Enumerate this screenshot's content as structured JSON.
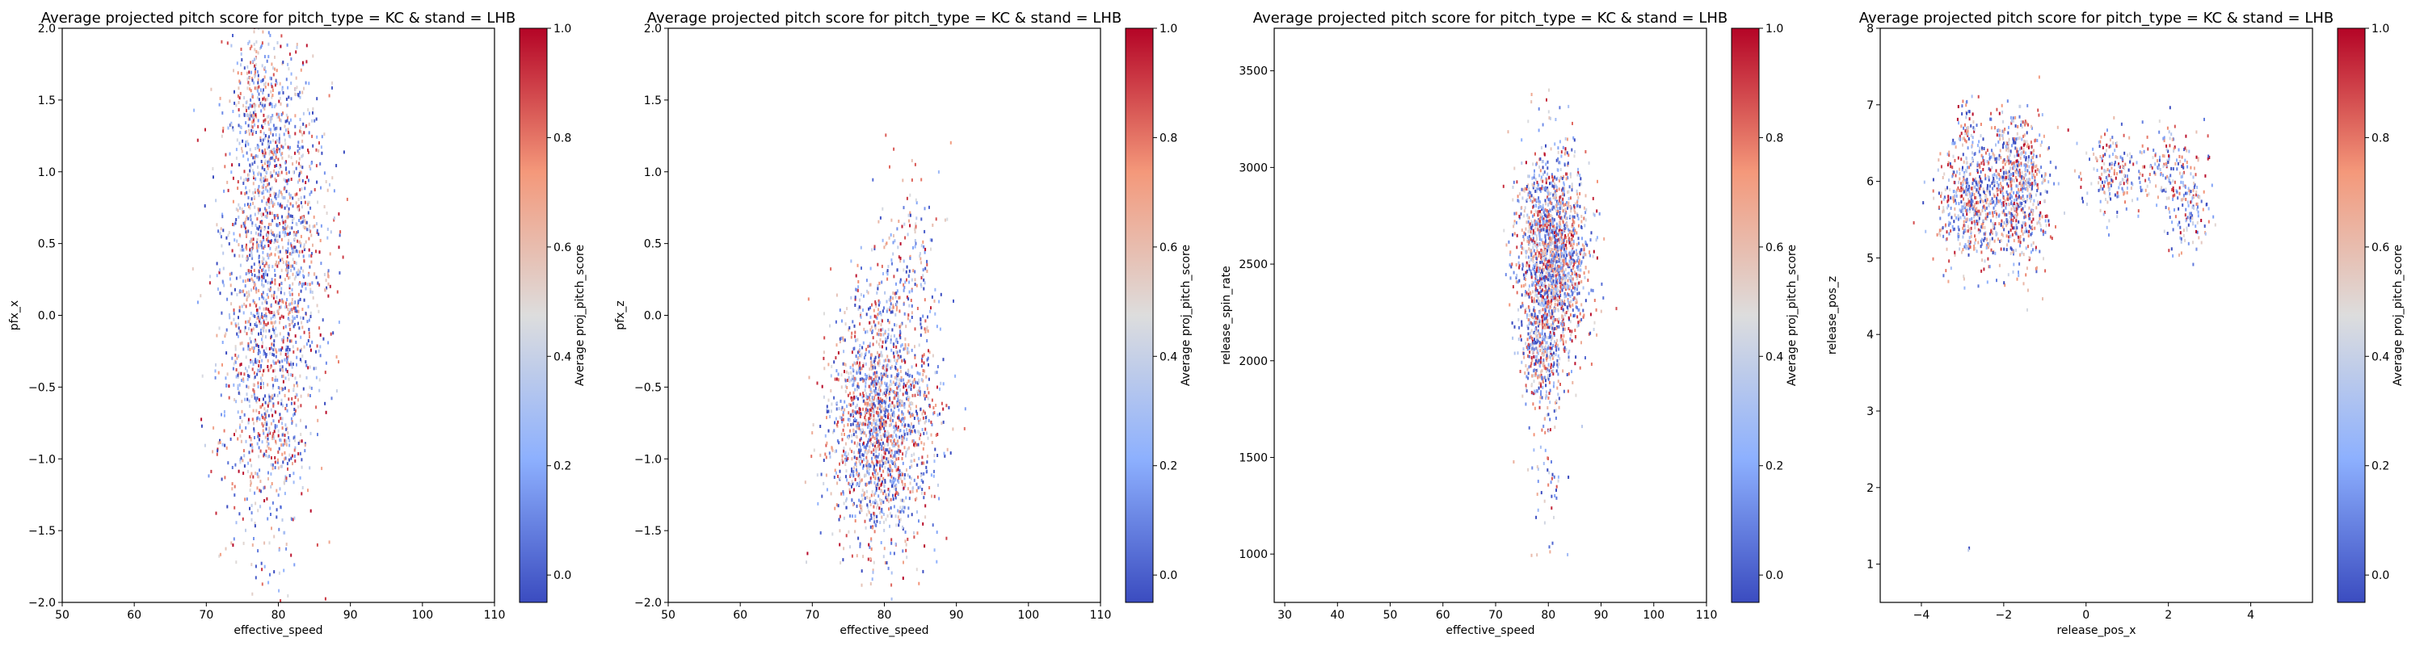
{
  "chart_data": [
    {
      "type": "heatmap",
      "title": "Average projected pitch score for pitch_type = KC & stand = LHB",
      "xlabel": "effective_speed",
      "ylabel": "pfx_x",
      "xlim": [
        50,
        110
      ],
      "ylim": [
        -2.0,
        2.0
      ],
      "xticks": [
        50,
        60,
        70,
        80,
        90,
        100,
        110
      ],
      "yticks": [
        -2.0,
        -1.5,
        -1.0,
        -0.5,
        0.0,
        0.5,
        1.0,
        1.5,
        2.0
      ],
      "xtick_labels": [
        "50",
        "60",
        "70",
        "80",
        "90",
        "100",
        "110"
      ],
      "ytick_labels": [
        "−2.0",
        "−1.5",
        "−1.0",
        "−0.5",
        "0.0",
        "0.5",
        "1.0",
        "1.5",
        "2.0"
      ],
      "colorbar": {
        "label": "Average proj_pitch_score",
        "range": [
          -0.05,
          1.0
        ],
        "ticks": [
          0.0,
          0.2,
          0.4,
          0.6,
          0.8,
          1.0
        ],
        "tick_labels": [
          "0.0",
          "0.2",
          "0.4",
          "0.6",
          "0.8",
          "1.0"
        ],
        "colormap": "coolwarm"
      },
      "clusters": [
        {
          "cx": 79.5,
          "cy": 0.6,
          "sx": 3.6,
          "sy": 0.6,
          "n": 1300
        },
        {
          "cx": 78.0,
          "cy": -0.6,
          "sx": 3.3,
          "sy": 0.55,
          "n": 700
        },
        {
          "cx": 77.0,
          "cy": 1.55,
          "sx": 1.8,
          "sy": 0.25,
          "n": 200
        }
      ]
    },
    {
      "type": "heatmap",
      "title": "Average projected pitch score for pitch_type = KC & stand = LHB",
      "xlabel": "effective_speed",
      "ylabel": "pfx_z",
      "xlim": [
        50,
        110
      ],
      "ylim": [
        -2.0,
        2.0
      ],
      "xticks": [
        50,
        60,
        70,
        80,
        90,
        100,
        110
      ],
      "yticks": [
        -2.0,
        -1.5,
        -1.0,
        -0.5,
        0.0,
        0.5,
        1.0,
        1.5,
        2.0
      ],
      "xtick_labels": [
        "50",
        "60",
        "70",
        "80",
        "90",
        "100",
        "110"
      ],
      "ytick_labels": [
        "−2.0",
        "−1.5",
        "−1.0",
        "−0.5",
        "0.0",
        "0.5",
        "1.0",
        "1.5",
        "2.0"
      ],
      "colorbar": {
        "label": "Average proj_pitch_score",
        "range": [
          -0.05,
          1.0
        ],
        "ticks": [
          0.0,
          0.2,
          0.4,
          0.6,
          0.8,
          1.0
        ],
        "tick_labels": [
          "0.0",
          "0.2",
          "0.4",
          "0.6",
          "0.8",
          "1.0"
        ],
        "colormap": "coolwarm"
      },
      "clusters": [
        {
          "cx": 79.5,
          "cy": -0.75,
          "sx": 3.6,
          "sy": 0.45,
          "n": 1800
        },
        {
          "cx": 83.0,
          "cy": 0.35,
          "sx": 2.5,
          "sy": 0.35,
          "n": 180
        }
      ]
    },
    {
      "type": "heatmap",
      "title": "Average projected pitch score for pitch_type = KC & stand = LHB",
      "xlabel": "effective_speed",
      "ylabel": "release_spin_rate",
      "xlim": [
        28,
        110
      ],
      "ylim": [
        750,
        3720
      ],
      "xticks": [
        30,
        40,
        50,
        60,
        70,
        80,
        90,
        100,
        110
      ],
      "yticks": [
        1000,
        1500,
        2000,
        2500,
        3000,
        3500
      ],
      "xtick_labels": [
        "30",
        "40",
        "50",
        "60",
        "70",
        "80",
        "90",
        "100",
        "110"
      ],
      "ytick_labels": [
        "1000",
        "1500",
        "2000",
        "2500",
        "3000",
        "3500"
      ],
      "colorbar": {
        "label": "Average proj_pitch_score",
        "range": [
          -0.05,
          1.0
        ],
        "ticks": [
          0.0,
          0.2,
          0.4,
          0.6,
          0.8,
          1.0
        ],
        "tick_labels": [
          "0.0",
          "0.2",
          "0.4",
          "0.6",
          "0.8",
          "1.0"
        ],
        "colormap": "coolwarm"
      },
      "clusters": [
        {
          "cx": 80.5,
          "cy": 2550,
          "sx": 3.3,
          "sy": 260,
          "n": 1700
        },
        {
          "cx": 78.5,
          "cy": 2050,
          "sx": 1.8,
          "sy": 150,
          "n": 300
        },
        {
          "cx": 79.5,
          "cy": 1450,
          "sx": 2.2,
          "sy": 250,
          "n": 60
        }
      ]
    },
    {
      "type": "heatmap",
      "title": "Average projected pitch score for pitch_type = KC & stand = LHB",
      "xlabel": "release_pos_x",
      "ylabel": "release_pos_z",
      "xlim": [
        -5.0,
        5.5
      ],
      "ylim": [
        0.5,
        8.0
      ],
      "xticks": [
        -4,
        -2,
        0,
        2,
        4
      ],
      "yticks": [
        1,
        2,
        3,
        4,
        5,
        6,
        7,
        8
      ],
      "xtick_labels": [
        "−4",
        "−2",
        "0",
        "2",
        "4"
      ],
      "ytick_labels": [
        "1",
        "2",
        "3",
        "4",
        "5",
        "6",
        "7",
        "8"
      ],
      "colorbar": {
        "label": "Average proj_pitch_score",
        "range": [
          -0.05,
          1.0
        ],
        "ticks": [
          0.0,
          0.2,
          0.4,
          0.6,
          0.8,
          1.0
        ],
        "tick_labels": [
          "0.0",
          "0.2",
          "0.4",
          "0.6",
          "0.8",
          "1.0"
        ],
        "colormap": "coolwarm"
      },
      "clusters": [
        {
          "cx": -2.8,
          "cy": 5.7,
          "sx": 0.45,
          "sy": 0.4,
          "n": 500
        },
        {
          "cx": -1.7,
          "cy": 5.9,
          "sx": 0.4,
          "sy": 0.5,
          "n": 700
        },
        {
          "cx": -2.9,
          "cy": 6.7,
          "sx": 0.15,
          "sy": 0.2,
          "n": 50
        },
        {
          "cx": 0.6,
          "cy": 6.1,
          "sx": 0.4,
          "sy": 0.3,
          "n": 180
        },
        {
          "cx": 2.1,
          "cy": 6.1,
          "sx": 0.45,
          "sy": 0.3,
          "n": 180
        },
        {
          "cx": 2.5,
          "cy": 5.5,
          "sx": 0.25,
          "sy": 0.25,
          "n": 80
        },
        {
          "cx": -2.9,
          "cy": 1.2,
          "sx": 0.02,
          "sy": 0.02,
          "n": 2
        }
      ]
    }
  ]
}
